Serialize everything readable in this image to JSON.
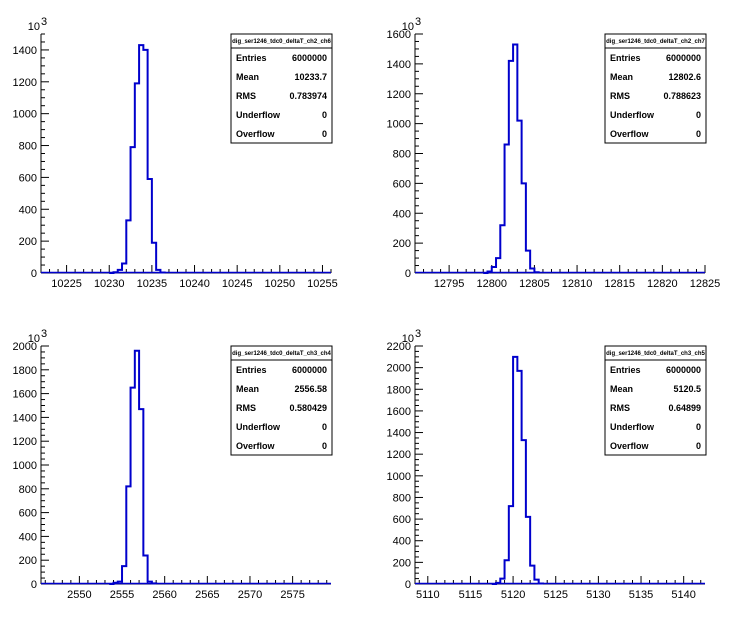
{
  "chart_data": [
    {
      "type": "bar",
      "title": "dig_ser1246_tdc0_deltaT_ch2_ch6",
      "y_exponent_label": "10",
      "y_exponent": "3",
      "xlim": [
        10222,
        10256
      ],
      "ylim": [
        0,
        1.5
      ],
      "x_ticks": [
        "10225",
        "10230",
        "10235",
        "10240",
        "10245",
        "10250",
        "10255"
      ],
      "y_ticks": [
        "0",
        "200",
        "400",
        "600",
        "800",
        "1000",
        "1200",
        "1400"
      ],
      "bin_width": 0.5,
      "bins_x": [
        10230.0,
        10230.5,
        10231.0,
        10231.5,
        10232.0,
        10232.5,
        10233.0,
        10233.5,
        10234.0,
        10234.5,
        10235.0,
        10235.5,
        10236.0
      ],
      "bins_y": [
        0.0,
        0.005,
        0.02,
        0.06,
        0.33,
        0.79,
        1.19,
        1.43,
        1.4,
        0.59,
        0.19,
        0.02,
        0.003
      ],
      "stats": [
        {
          "label": "Entries",
          "value": "6000000"
        },
        {
          "label": "Mean",
          "value": "10233.7"
        },
        {
          "label": "RMS",
          "value": "0.783974"
        },
        {
          "label": "Underflow",
          "value": "0"
        },
        {
          "label": "Overflow",
          "value": "0"
        }
      ]
    },
    {
      "type": "bar",
      "title": "dig_ser1246_tdc0_deltaT_ch2_ch7",
      "y_exponent_label": "10",
      "y_exponent": "3",
      "xlim": [
        12791,
        12825
      ],
      "ylim": [
        0,
        1.6
      ],
      "x_ticks": [
        "12795",
        "12800",
        "12805",
        "12810",
        "12815",
        "12820",
        "12825"
      ],
      "y_ticks": [
        "0",
        "200",
        "400",
        "600",
        "800",
        "1000",
        "1200",
        "1400",
        "1600"
      ],
      "bin_width": 0.5,
      "bins_x": [
        12799.0,
        12799.5,
        12800.0,
        12800.5,
        12801.0,
        12801.5,
        12802.0,
        12802.5,
        12803.0,
        12803.5,
        12804.0,
        12804.5,
        12805.0
      ],
      "bins_y": [
        0.0,
        0.01,
        0.04,
        0.1,
        0.32,
        0.86,
        1.42,
        1.53,
        1.02,
        0.6,
        0.15,
        0.03,
        0.005
      ],
      "stats": [
        {
          "label": "Entries",
          "value": "6000000"
        },
        {
          "label": "Mean",
          "value": "12802.6"
        },
        {
          "label": "RMS",
          "value": "0.788623"
        },
        {
          "label": "Underflow",
          "value": "0"
        },
        {
          "label": "Overflow",
          "value": "0"
        }
      ]
    },
    {
      "type": "bar",
      "title": "dig_ser1246_tdc0_deltaT_ch3_ch4",
      "y_exponent_label": "10",
      "y_exponent": "3",
      "xlim": [
        2545.5,
        2579.5
      ],
      "ylim": [
        0,
        2.0
      ],
      "x_ticks": [
        "2550",
        "2555",
        "2560",
        "2565",
        "2570",
        "2575"
      ],
      "y_ticks": [
        "0",
        "200",
        "400",
        "600",
        "800",
        "1000",
        "1200",
        "1400",
        "1600",
        "1800",
        "2000"
      ],
      "bin_width": 0.5,
      "bins_x": [
        2553.5,
        2554.0,
        2554.5,
        2555.0,
        2555.5,
        2556.0,
        2556.5,
        2557.0,
        2557.5,
        2558.0,
        2558.5
      ],
      "bins_y": [
        0.0,
        0.01,
        0.02,
        0.15,
        0.82,
        1.65,
        1.96,
        1.47,
        0.24,
        0.02,
        0.005
      ],
      "stats": [
        {
          "label": "Entries",
          "value": "6000000"
        },
        {
          "label": "Mean",
          "value": "2556.58"
        },
        {
          "label": "RMS",
          "value": "0.580429"
        },
        {
          "label": "Underflow",
          "value": "0"
        },
        {
          "label": "Overflow",
          "value": "0"
        }
      ]
    },
    {
      "type": "bar",
      "title": "dig_ser1246_tdc0_deltaT_ch3_ch5",
      "y_exponent_label": "10",
      "y_exponent": "3",
      "xlim": [
        5108.5,
        5142.5
      ],
      "ylim": [
        0,
        2.2
      ],
      "x_ticks": [
        "5110",
        "5115",
        "5120",
        "5125",
        "5130",
        "5135",
        "5140"
      ],
      "y_ticks": [
        "0",
        "200",
        "400",
        "600",
        "800",
        "1000",
        "1200",
        "1400",
        "1600",
        "1800",
        "2000",
        "2200"
      ],
      "bin_width": 0.5,
      "bins_x": [
        5117.5,
        5118.0,
        5118.5,
        5119.0,
        5119.5,
        5120.0,
        5120.5,
        5121.0,
        5121.5,
        5122.0,
        5122.5,
        5123.0
      ],
      "bins_y": [
        0.0,
        0.01,
        0.05,
        0.22,
        0.72,
        2.1,
        1.97,
        1.33,
        0.62,
        0.17,
        0.04,
        0.005
      ],
      "stats": [
        {
          "label": "Entries",
          "value": "6000000"
        },
        {
          "label": "Mean",
          "value": "5120.5"
        },
        {
          "label": "RMS",
          "value": "0.64899"
        },
        {
          "label": "Underflow",
          "value": "0"
        },
        {
          "label": "Overflow",
          "value": "0"
        }
      ]
    }
  ]
}
